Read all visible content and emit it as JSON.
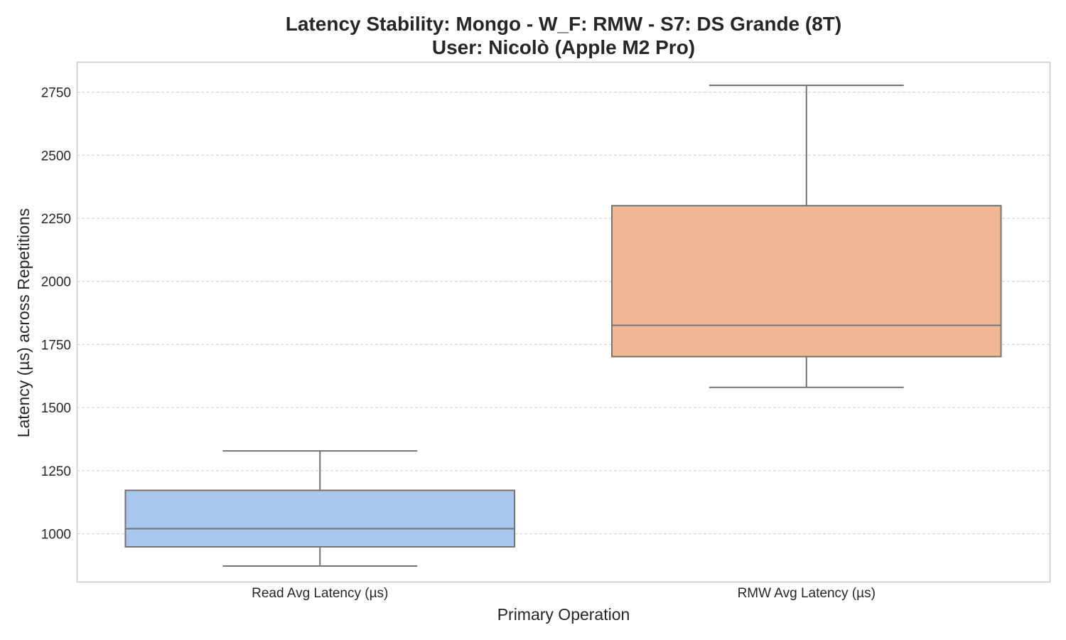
{
  "chart_data": {
    "type": "box",
    "title": "Latency Stability: Mongo - W_F: RMW - S7: DS Grande (8T)",
    "subtitle": "User: Nicolò (Apple M2 Pro)",
    "xlabel": "Primary Operation",
    "ylabel": "Latency (µs) across Repetitions",
    "ylim": [
      810,
      2870
    ],
    "yticks": [
      1000,
      1250,
      1500,
      1750,
      2000,
      2250,
      2500,
      2750
    ],
    "grid": true,
    "categories": [
      "Read Avg Latency (µs)",
      "RMW Avg Latency (µs)"
    ],
    "boxes": [
      {
        "category": "Read Avg Latency (µs)",
        "whisker_low": 872,
        "q1": 948,
        "median": 1020,
        "q3": 1172,
        "whisker_high": 1328,
        "color": "#a9c7ec"
      },
      {
        "category": "RMW Avg Latency (µs)",
        "whisker_low": 1580,
        "q1": 1702,
        "median": 1826,
        "q3": 2300,
        "whisker_high": 2777,
        "color": "#f1b893"
      }
    ],
    "colors": {
      "box_edge": "#737373",
      "grid": "#cccccc",
      "frame": "#cccccc",
      "text": "#262626"
    }
  }
}
